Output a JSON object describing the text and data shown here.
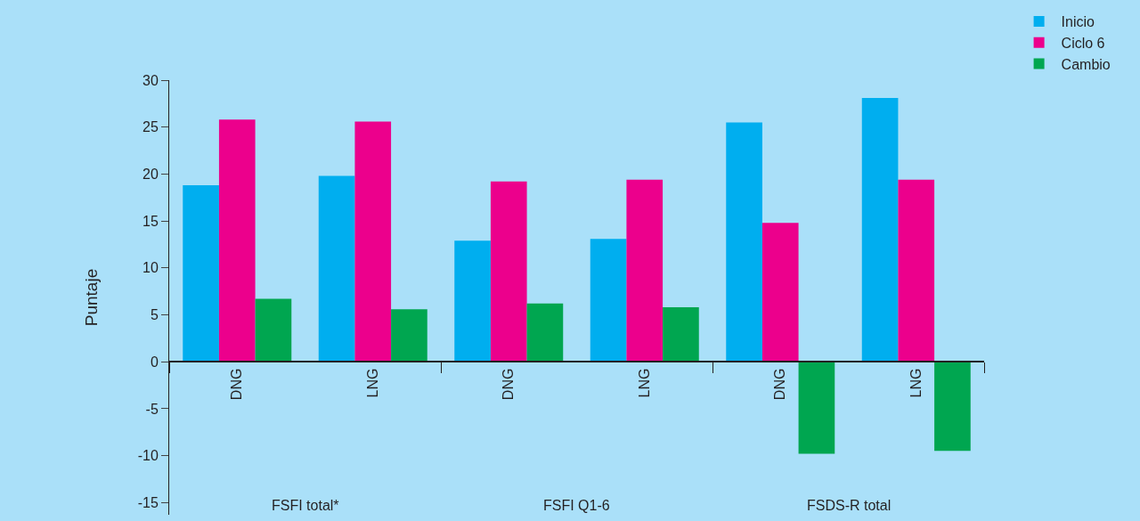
{
  "chart_data": {
    "type": "bar",
    "ylabel": "Puntaje",
    "categories": [
      "DNG",
      "LNG",
      "DNG",
      "LNG",
      "DNG",
      "LNG"
    ],
    "series": [
      {
        "name": "Inicio",
        "color": "#00aeef",
        "values": [
          18.8,
          19.8,
          12.9,
          13.1,
          25.5,
          28.1
        ]
      },
      {
        "name": "Ciclo 6",
        "color": "#ec008c",
        "values": [
          25.8,
          25.6,
          19.2,
          19.4,
          14.8,
          19.4
        ]
      },
      {
        "name": "Cambio",
        "color": "#00a650",
        "values": [
          6.7,
          5.6,
          6.2,
          5.8,
          -9.8,
          -9.5
        ]
      }
    ],
    "annotations": [
      "FSFI total*",
      "FSFI Q1-6",
      "FSDS-R total"
    ],
    "ylim": [
      -16.3,
      30
    ],
    "yticks": [
      -15,
      -10,
      -5,
      0,
      5,
      10,
      15,
      20,
      25,
      30
    ],
    "grid": false,
    "legend": "top right"
  }
}
